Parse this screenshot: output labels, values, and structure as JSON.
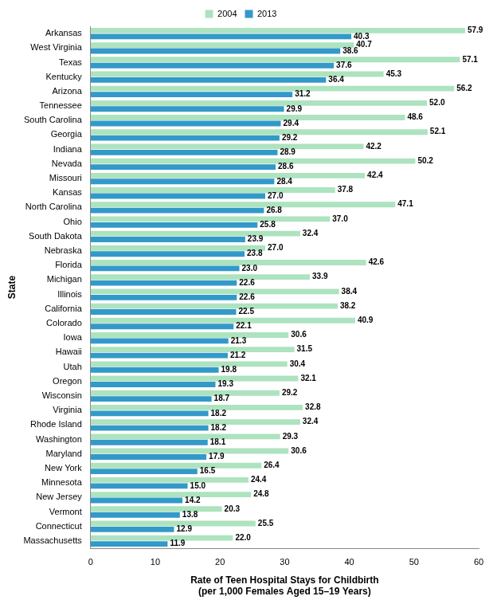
{
  "chart_data": {
    "type": "bar",
    "orientation": "horizontal",
    "x_label": "Rate of Teen Hospital Stays for Childbirth\n(per 1,000 Females Aged 15–19 Years)",
    "y_label": "State",
    "categories": [
      "Arkansas",
      "West Virginia",
      "Texas",
      "Kentucky",
      "Arizona",
      "Tennessee",
      "South Carolina",
      "Georgia",
      "Indiana",
      "Nevada",
      "Missouri",
      "Kansas",
      "North Carolina",
      "Ohio",
      "South Dakota",
      "Nebraska",
      "Florida",
      "Michigan",
      "Illinois",
      "California",
      "Colorado",
      "Iowa",
      "Hawaii",
      "Utah",
      "Oregon",
      "Wisconsin",
      "Virginia",
      "Rhode Island",
      "Washington",
      "Maryland",
      "New York",
      "Minnesota",
      "New Jersey",
      "Vermont",
      "Connecticut",
      "Massachusetts"
    ],
    "series": [
      {
        "name": "2004",
        "color": "#ade3bf",
        "values": [
          57.9,
          40.7,
          57.1,
          45.3,
          56.2,
          52.0,
          48.6,
          52.1,
          42.2,
          50.2,
          42.4,
          37.8,
          47.1,
          37.0,
          32.4,
          27.0,
          42.6,
          33.9,
          38.4,
          38.2,
          40.9,
          30.6,
          31.5,
          30.4,
          32.1,
          29.2,
          32.8,
          32.4,
          29.3,
          30.6,
          26.4,
          24.4,
          24.8,
          20.3,
          25.5,
          22.0
        ],
        "value_labels": [
          "57.9",
          "40.7",
          "57.1",
          "45.3",
          "56.2",
          "52.0",
          "48.6",
          "52.1",
          "42.2",
          "50.2",
          "42.4",
          "37.8",
          "47.1",
          "37.0",
          "32.4",
          "27.0",
          "42.6",
          "33.9",
          "38.4",
          "38.2",
          "40.9",
          "30.6",
          "31.5",
          "30.4",
          "32.1",
          "29.2",
          "32.8",
          "32.4",
          "29.3",
          "30.6",
          "26.4",
          "24.4",
          "24.8",
          "20.3",
          "25.5",
          "22.0"
        ]
      },
      {
        "name": "2013",
        "color": "#3399c9",
        "values": [
          40.3,
          38.6,
          37.6,
          36.4,
          31.2,
          29.9,
          29.4,
          29.2,
          28.9,
          28.6,
          28.4,
          27.0,
          26.8,
          25.8,
          23.9,
          23.8,
          23.0,
          22.6,
          22.6,
          22.5,
          22.1,
          21.3,
          21.2,
          19.8,
          19.3,
          18.7,
          18.2,
          18.2,
          18.1,
          17.9,
          16.5,
          15.0,
          14.2,
          13.8,
          12.9,
          11.9
        ],
        "value_labels": [
          "40.3",
          "38.6",
          "37.6",
          "36.4",
          "31.2",
          "29.9",
          "29.4",
          "29.2",
          "28.9",
          "28.6",
          "28.4",
          "27.0",
          "26.8",
          "25.8",
          "23.9",
          "23.8",
          "23.0",
          "22.6",
          "22.6",
          "22.5",
          "22.1",
          "21.3",
          "21.2",
          "19.8",
          "19.3",
          "18.7",
          "18.2",
          "18.2",
          "18.1",
          "17.9",
          "16.5",
          "15.0",
          "14.2",
          "13.8",
          "12.9",
          "11.9"
        ]
      }
    ],
    "xlim": [
      0,
      60
    ],
    "xticks": [
      0,
      10,
      20,
      30,
      40,
      50,
      60
    ],
    "grid": false,
    "legend": "top",
    "data_labels": true
  }
}
